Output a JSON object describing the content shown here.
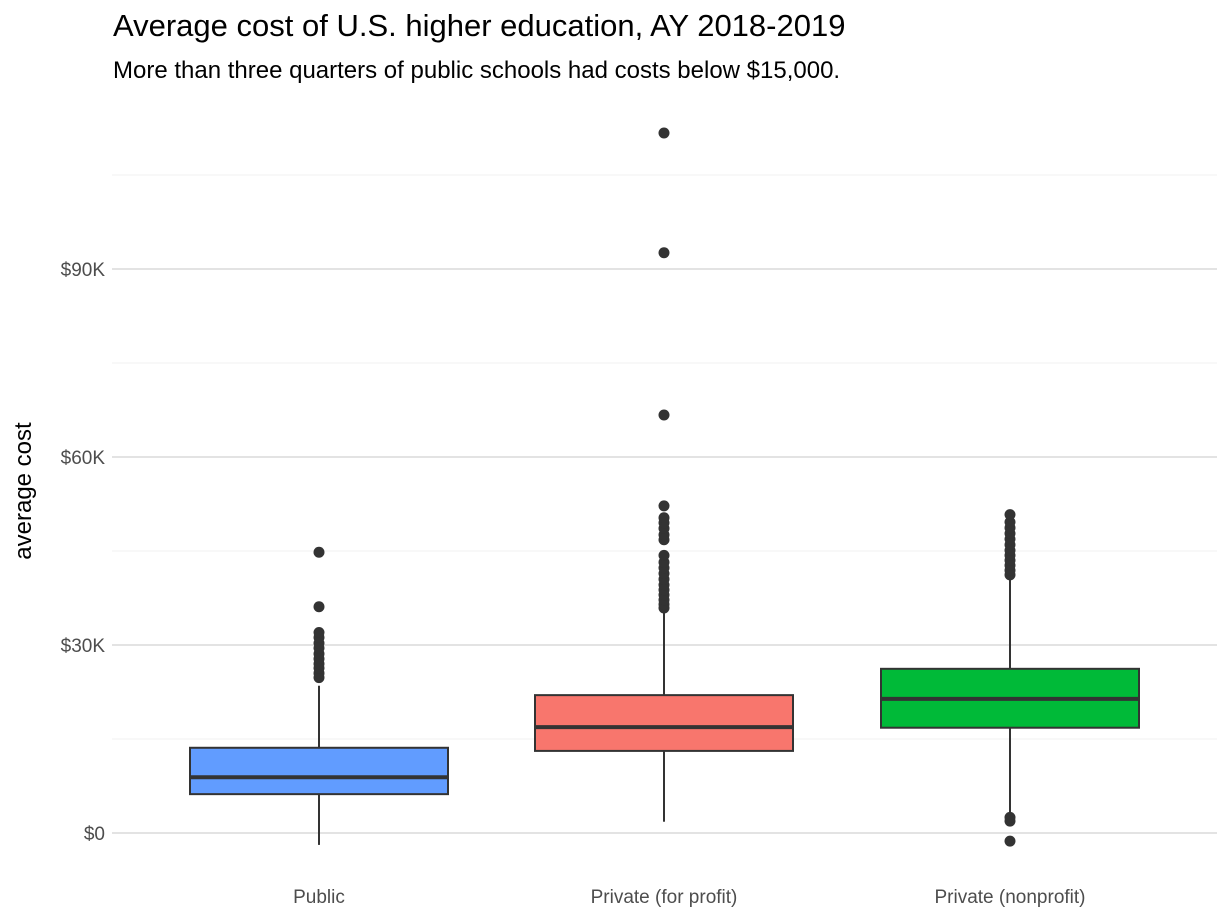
{
  "chart_data": {
    "type": "boxplot",
    "title": "Average cost of U.S. higher education, AY 2018-2019",
    "subtitle": "More than three quarters of public schools had costs below $15,000.",
    "xlabel": "",
    "ylabel": "average cost",
    "ylim": [
      -3000,
      113000
    ],
    "yticks": [
      0,
      30000,
      60000,
      90000
    ],
    "ytick_labels": [
      "$0",
      "$30K",
      "$60K",
      "$90K"
    ],
    "grid": true,
    "categories": [
      "Public",
      "Private (for profit)",
      "Private (nonprofit)"
    ],
    "series": [
      {
        "name": "Public",
        "color": "#619CFF",
        "whisker_low": -1900,
        "q1": 6200,
        "median": 8900,
        "q3": 13600,
        "whisker_high": 23500,
        "outliers": [
          24800,
          25500,
          26300,
          27000,
          27800,
          28600,
          29500,
          30300,
          31200,
          32000,
          36100,
          44800
        ]
      },
      {
        "name": "Private (for profit)",
        "color": "#F8766D",
        "whisker_low": 1800,
        "q1": 13100,
        "median": 16900,
        "q3": 22000,
        "whisker_high": 35800,
        "outliers": [
          35900,
          36500,
          37200,
          38000,
          38800,
          39600,
          40500,
          41400,
          42300,
          43200,
          44300,
          46800,
          47600,
          48600,
          49500,
          50300,
          52200,
          66700,
          92600,
          111700
        ]
      },
      {
        "name": "Private (nonprofit)",
        "color": "#00BA38",
        "whisker_low": 3200,
        "q1": 16800,
        "median": 21400,
        "q3": 26200,
        "whisker_high": 40800,
        "outliers": [
          -1300,
          1900,
          2500,
          41200,
          41900,
          42700,
          43500,
          44300,
          45100,
          46000,
          46900,
          47800,
          48700,
          49600,
          50800
        ]
      }
    ]
  }
}
